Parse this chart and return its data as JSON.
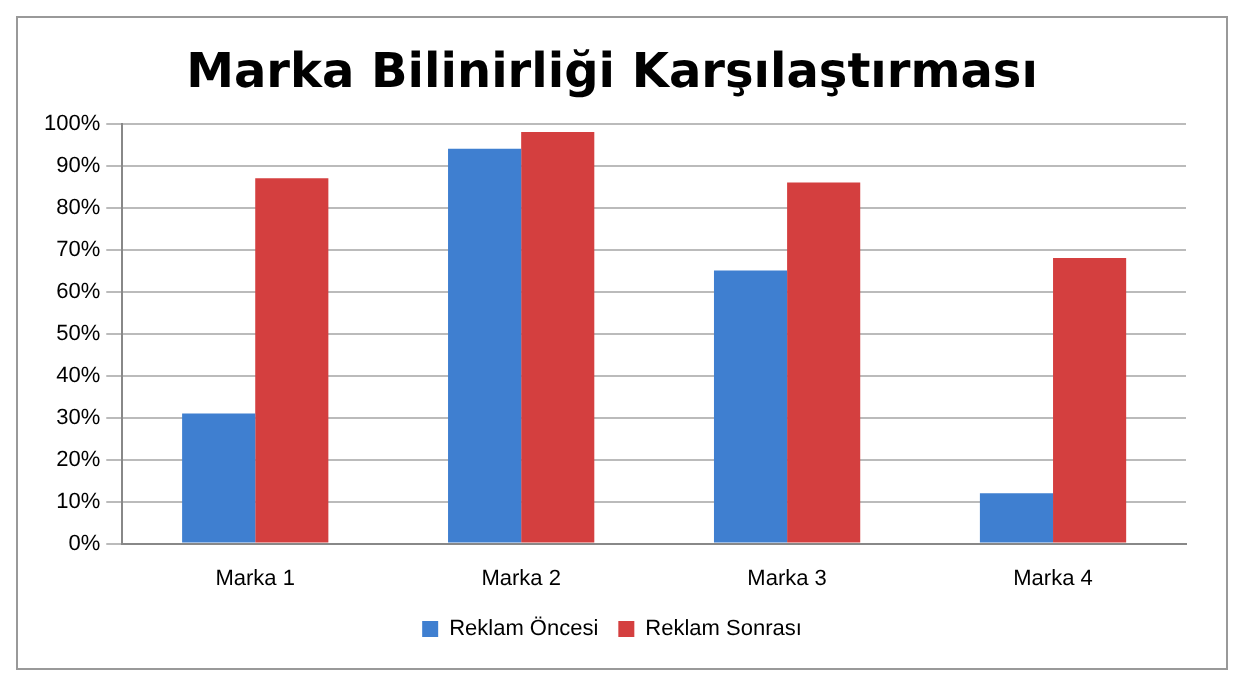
{
  "chart_data": {
    "type": "bar",
    "title": "Marka Bilinirliği Karşılaştırması",
    "categories": [
      "Marka 1",
      "Marka 2",
      "Marka 3",
      "Marka 4"
    ],
    "series": [
      {
        "name": "Reklam Öncesi",
        "color": "#3f7fd0",
        "values": [
          31,
          94,
          65,
          12
        ]
      },
      {
        "name": "Reklam Sonrası",
        "color": "#d43f3f",
        "values": [
          87,
          98,
          86,
          68
        ]
      }
    ],
    "ylim": [
      0,
      100
    ],
    "yticks": [
      {
        "value": 0,
        "label": "0%"
      },
      {
        "value": 10,
        "label": "10%"
      },
      {
        "value": 20,
        "label": "20%"
      },
      {
        "value": 30,
        "label": "30%"
      },
      {
        "value": 40,
        "label": "40%"
      },
      {
        "value": 50,
        "label": "50%"
      },
      {
        "value": 60,
        "label": "60%"
      },
      {
        "value": 70,
        "label": "70%"
      },
      {
        "value": 80,
        "label": "80%"
      },
      {
        "value": 90,
        "label": "90%"
      },
      {
        "value": 100,
        "label": "100%"
      }
    ],
    "grid": "y",
    "legend": "bottom"
  }
}
